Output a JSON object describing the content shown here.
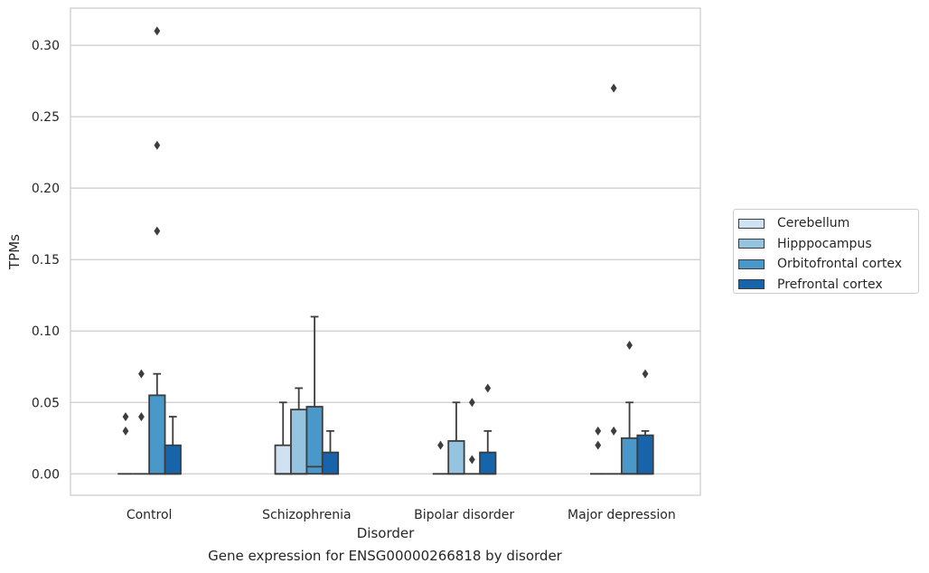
{
  "chart_data": {
    "type": "box",
    "title": "",
    "caption": "Gene expression for ENSG00000266818 by disorder",
    "xlabel": "Disorder",
    "ylabel": "TPMs",
    "ylim": [
      -0.015,
      0.326
    ],
    "yticks": [
      0.0,
      0.05,
      0.1,
      0.15,
      0.2,
      0.25,
      0.3
    ],
    "ytick_labels": [
      "0.00",
      "0.05",
      "0.10",
      "0.15",
      "0.20",
      "0.25",
      "0.30"
    ],
    "grid": "horizontal",
    "legend_position": "right",
    "categories": [
      "Control",
      "Schizophrenia",
      "Bipolar disorder",
      "Major depression"
    ],
    "series": [
      {
        "name": "Cerebellum",
        "color": "#d0e1f2",
        "boxes": [
          {
            "q1": 0,
            "median": 0,
            "q3": 0,
            "whisker_low": 0,
            "whisker_high": 0,
            "outliers": [
              0.03,
              0.04
            ]
          },
          {
            "q1": 0,
            "median": 0,
            "q3": 0.02,
            "whisker_low": 0,
            "whisker_high": 0.05,
            "outliers": []
          },
          {
            "q1": 0,
            "median": 0,
            "q3": 0,
            "whisker_low": 0,
            "whisker_high": 0,
            "outliers": [
              0.02
            ]
          },
          {
            "q1": 0,
            "median": 0,
            "q3": 0,
            "whisker_low": 0,
            "whisker_high": 0,
            "outliers": [
              0.02,
              0.03
            ]
          }
        ]
      },
      {
        "name": "Hipppocampus",
        "color": "#94c4df",
        "boxes": [
          {
            "q1": 0,
            "median": 0,
            "q3": 0,
            "whisker_low": 0,
            "whisker_high": 0,
            "outliers": [
              0.04,
              0.07
            ]
          },
          {
            "q1": 0,
            "median": 0,
            "q3": 0.045,
            "whisker_low": 0,
            "whisker_high": 0.06,
            "outliers": []
          },
          {
            "q1": 0,
            "median": 0,
            "q3": 0.023,
            "whisker_low": 0,
            "whisker_high": 0.05,
            "outliers": []
          },
          {
            "q1": 0,
            "median": 0,
            "q3": 0,
            "whisker_low": 0,
            "whisker_high": 0,
            "outliers": [
              0.03,
              0.27
            ]
          }
        ]
      },
      {
        "name": "Orbitofrontal cortex",
        "color": "#4a98c9",
        "boxes": [
          {
            "q1": 0,
            "median": 0,
            "q3": 0.055,
            "whisker_low": 0,
            "whisker_high": 0.07,
            "outliers": [
              0.17,
              0.23,
              0.31
            ]
          },
          {
            "q1": 0,
            "median": 0.005,
            "q3": 0.047,
            "whisker_low": 0,
            "whisker_high": 0.11,
            "outliers": []
          },
          {
            "q1": 0,
            "median": 0,
            "q3": 0,
            "whisker_low": 0,
            "whisker_high": 0,
            "outliers": [
              0.01,
              0.05
            ]
          },
          {
            "q1": 0,
            "median": 0,
            "q3": 0.025,
            "whisker_low": 0,
            "whisker_high": 0.05,
            "outliers": [
              0.09
            ]
          }
        ]
      },
      {
        "name": "Prefrontal cortex",
        "color": "#1764ab",
        "boxes": [
          {
            "q1": 0,
            "median": 0,
            "q3": 0.02,
            "whisker_low": 0,
            "whisker_high": 0.04,
            "outliers": []
          },
          {
            "q1": 0,
            "median": 0,
            "q3": 0.015,
            "whisker_low": 0,
            "whisker_high": 0.03,
            "outliers": []
          },
          {
            "q1": 0,
            "median": 0,
            "q3": 0.015,
            "whisker_low": 0,
            "whisker_high": 0.03,
            "outliers": [
              0.06
            ]
          },
          {
            "q1": 0,
            "median": 0,
            "q3": 0.027,
            "whisker_low": 0,
            "whisker_high": 0.03,
            "outliers": [
              0.07
            ]
          }
        ]
      }
    ]
  }
}
